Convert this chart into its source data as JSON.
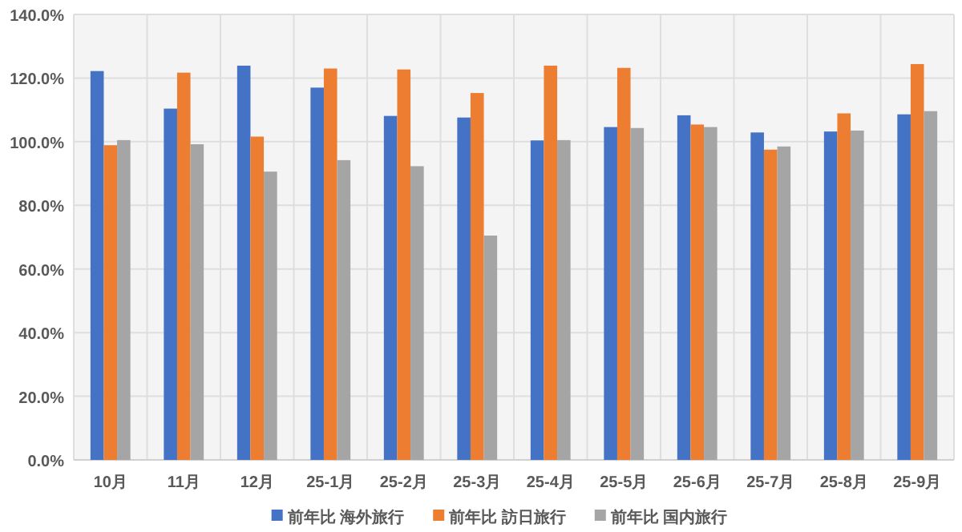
{
  "chart_data": {
    "type": "bar",
    "categories": [
      "10月",
      "11月",
      "12月",
      "25-1月",
      "25-2月",
      "25-3月",
      "25-4月",
      "25-5月",
      "25-6月",
      "25-7月",
      "25-8月",
      "25-9月"
    ],
    "series": [
      {
        "name": "前年比 海外旅行",
        "color": "#4472c4",
        "values": [
          122.2,
          110.4,
          123.9,
          117.0,
          108.1,
          107.6,
          100.4,
          104.6,
          108.3,
          102.9,
          103.2,
          108.6
        ]
      },
      {
        "name": "前年比 訪日旅行",
        "color": "#ed7d31",
        "values": [
          98.9,
          121.7,
          101.6,
          123.0,
          122.7,
          115.3,
          123.9,
          123.2,
          105.4,
          97.5,
          108.9,
          124.4
        ]
      },
      {
        "name": "前年比 国内旅行",
        "color": "#a5a5a5",
        "values": [
          100.5,
          99.2,
          90.6,
          94.2,
          92.3,
          70.5,
          100.5,
          104.3,
          104.6,
          98.5,
          103.5,
          109.6
        ]
      }
    ],
    "ylim": [
      0,
      140
    ],
    "yticks": [
      {
        "value": 0,
        "label": "0.0%"
      },
      {
        "value": 20,
        "label": "20.0%"
      },
      {
        "value": 40,
        "label": "40.0%"
      },
      {
        "value": 60,
        "label": "60.0%"
      },
      {
        "value": 80,
        "label": "80.0%"
      },
      {
        "value": 100,
        "label": "100.0%"
      },
      {
        "value": 120,
        "label": "120.0%"
      },
      {
        "value": 140,
        "label": "140.0%"
      }
    ],
    "grid": true,
    "legend": "bottom"
  }
}
